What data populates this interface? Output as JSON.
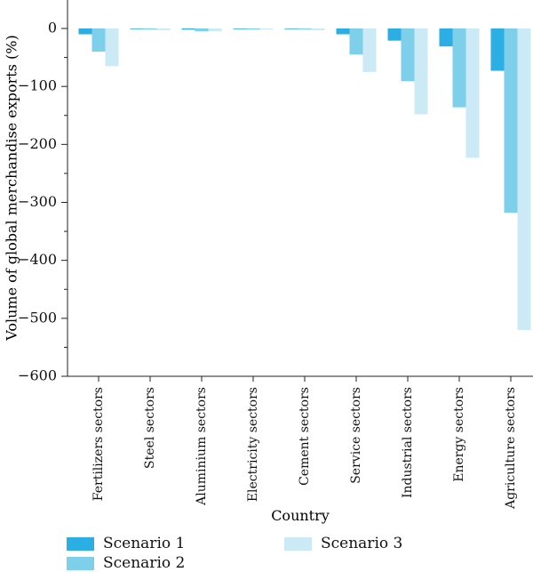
{
  "chart_data": {
    "type": "bar",
    "title": "",
    "xlabel": "Country",
    "ylabel": "Volume of global merchandise exports (%)",
    "ylim": [
      -600,
      0
    ],
    "yticks": [
      0,
      -100,
      -200,
      -300,
      -400,
      -500,
      -600
    ],
    "ytick_labels": [
      "0",
      "−100",
      "−200",
      "−300",
      "−400",
      "−500",
      "−600"
    ],
    "grid": false,
    "legend_position": "bottom",
    "categories": [
      "Fertilizers sectors",
      "Steel sectors",
      "Aluminium sectors",
      "Electricity sectors",
      "Cement sectors",
      "Service sectors",
      "Industrial sectors",
      "Energy sectors",
      "Agriculture sectors"
    ],
    "series": [
      {
        "name": "Scenario 1",
        "color": "#2aaee3",
        "values": [
          -10,
          -1,
          -2,
          -1,
          -1,
          -10,
          -21,
          -31,
          -73
        ]
      },
      {
        "name": "Scenario 2",
        "color": "#7dcfea",
        "values": [
          -40,
          -2,
          -5,
          -2,
          -2,
          -45,
          -91,
          -136,
          -318
        ]
      },
      {
        "name": "Scenario 3",
        "color": "#cbeaf6",
        "values": [
          -65,
          -3,
          -5,
          -2,
          -3,
          -75,
          -148,
          -223,
          -520
        ]
      }
    ]
  }
}
